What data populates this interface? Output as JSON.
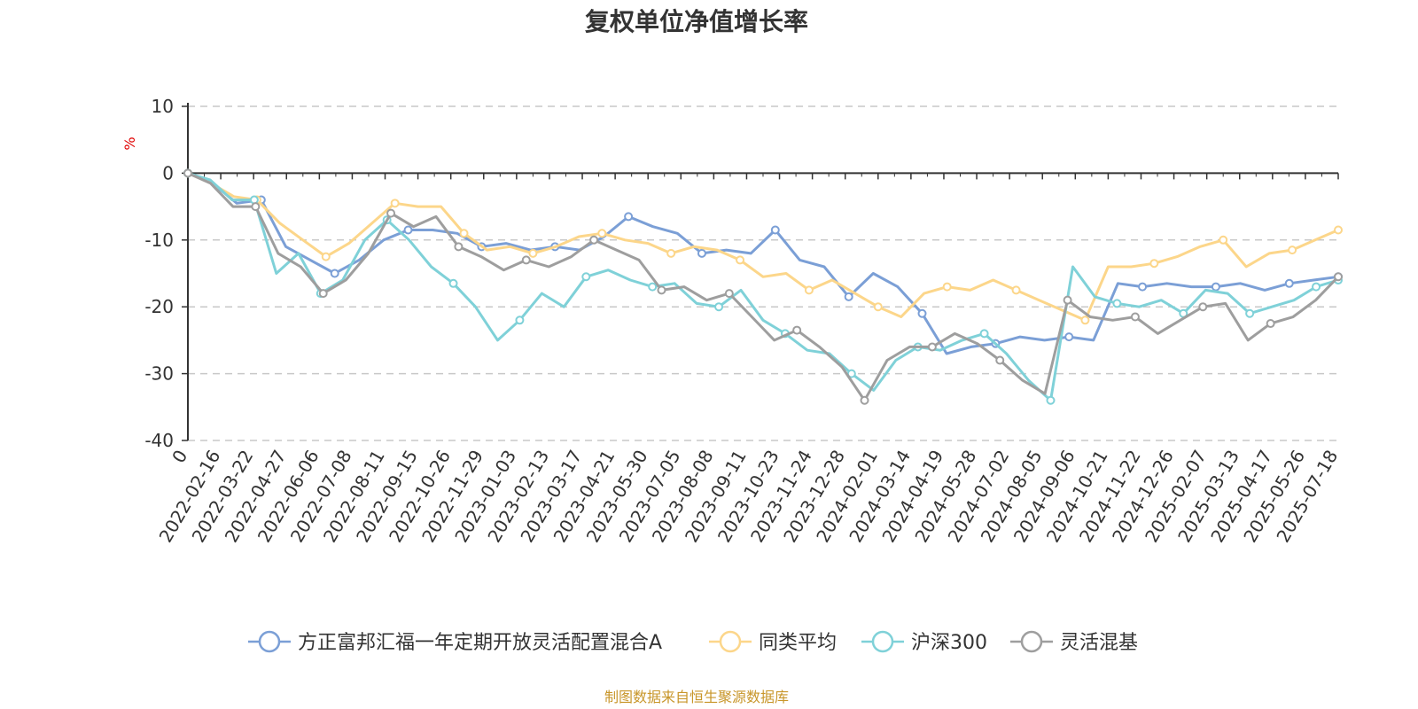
{
  "chart_data": {
    "type": "line",
    "title": "复权单位净值增长率",
    "ylabel": "%",
    "ylim": [
      -40,
      10
    ],
    "yticks": [
      10,
      0,
      -10,
      -20,
      -30,
      -40
    ],
    "grid": true,
    "legend_position": "bottom",
    "x_tick_labels": [
      "0",
      "2022-02-16",
      "2022-03-22",
      "2022-04-27",
      "2022-06-06",
      "2022-07-08",
      "2022-08-11",
      "2022-09-15",
      "2022-10-26",
      "2022-11-29",
      "2023-01-03",
      "2023-02-13",
      "2023-03-17",
      "2023-04-21",
      "2023-05-30",
      "2023-07-05",
      "2023-08-08",
      "2023-09-11",
      "2023-10-23",
      "2023-11-24",
      "2023-12-28",
      "2024-02-01",
      "2024-03-14",
      "2024-04-19",
      "2024-05-28",
      "2024-07-02",
      "2024-08-05",
      "2024-09-06",
      "2024-10-21",
      "2024-11-22",
      "2024-12-26",
      "2025-02-07",
      "2025-03-13",
      "2025-04-17",
      "2025-05-26",
      "2025-07-18"
    ],
    "series": [
      {
        "name": "方正富邦汇福一年定期开放灵活配置混合A",
        "color": "#7b9fd6",
        "values": [
          0,
          -1.5,
          -4.5,
          -4,
          -11,
          -13,
          -15,
          -13,
          -10,
          -8.5,
          -8.5,
          -9,
          -11,
          -10.5,
          -11.5,
          -11,
          -11.5,
          -9.5,
          -6.5,
          -8,
          -9,
          -12,
          -11.5,
          -12,
          -8.5,
          -13,
          -14,
          -18.5,
          -15,
          -17,
          -21,
          -27,
          -26,
          -25.5,
          -24.5,
          -25,
          -24.5,
          -25,
          -16.5,
          -17,
          -16.5,
          -17,
          -17,
          -16.5,
          -17.5,
          -16.5,
          -16,
          -15.5
        ]
      },
      {
        "name": "同类平均",
        "color": "#fcd68a",
        "values": [
          0,
          -1.5,
          -3.5,
          -4,
          -7.5,
          -10,
          -12.5,
          -10.5,
          -7.5,
          -4.5,
          -5,
          -5,
          -9,
          -11.5,
          -11,
          -12,
          -11,
          -9.5,
          -9,
          -10,
          -10.5,
          -12,
          -11,
          -11.5,
          -13,
          -15.5,
          -15,
          -17.5,
          -16,
          -18,
          -20,
          -21.5,
          -18,
          -17,
          -17.5,
          -16,
          -17.5,
          -19,
          -20.5,
          -22,
          -14,
          -14,
          -13.5,
          -12.5,
          -11,
          -10,
          -14,
          -12,
          -11.5,
          -10,
          -8.5
        ]
      },
      {
        "name": "沪深300",
        "color": "#7fd1d8",
        "values": [
          0,
          -1,
          -4,
          -4,
          -15,
          -12,
          -18,
          -16,
          -10,
          -7,
          -10,
          -14,
          -16.5,
          -20,
          -25,
          -22,
          -18,
          -20,
          -15.5,
          -14.5,
          -16,
          -17,
          -16.5,
          -19.5,
          -20,
          -17.5,
          -22,
          -24,
          -26.5,
          -27,
          -30,
          -32.5,
          -28,
          -26,
          -26.5,
          -25,
          -24,
          -27,
          -31,
          -34,
          -14,
          -18.5,
          -19.5,
          -20,
          -19,
          -21,
          -17.5,
          -18,
          -21,
          -20,
          -19,
          -17,
          -16
        ]
      },
      {
        "name": "灵活混基",
        "color": "#9e9e9e",
        "values": [
          0,
          -1.5,
          -5,
          -5,
          -12,
          -14,
          -18,
          -16,
          -12,
          -6,
          -8,
          -6.5,
          -11,
          -12.5,
          -14.5,
          -13,
          -14,
          -12.5,
          -10,
          -11.5,
          -13,
          -17.5,
          -17,
          -19,
          -18,
          -21.5,
          -25,
          -23.5,
          -26,
          -29,
          -34,
          -28,
          -26,
          -26,
          -24,
          -25.5,
          -28,
          -31,
          -33,
          -19,
          -21.5,
          -22,
          -21.5,
          -24,
          -22,
          -20,
          -19.5,
          -25,
          -22.5,
          -21.5,
          -19,
          -15.5
        ]
      }
    ]
  },
  "source_note": "制图数据来自恒生聚源数据库"
}
